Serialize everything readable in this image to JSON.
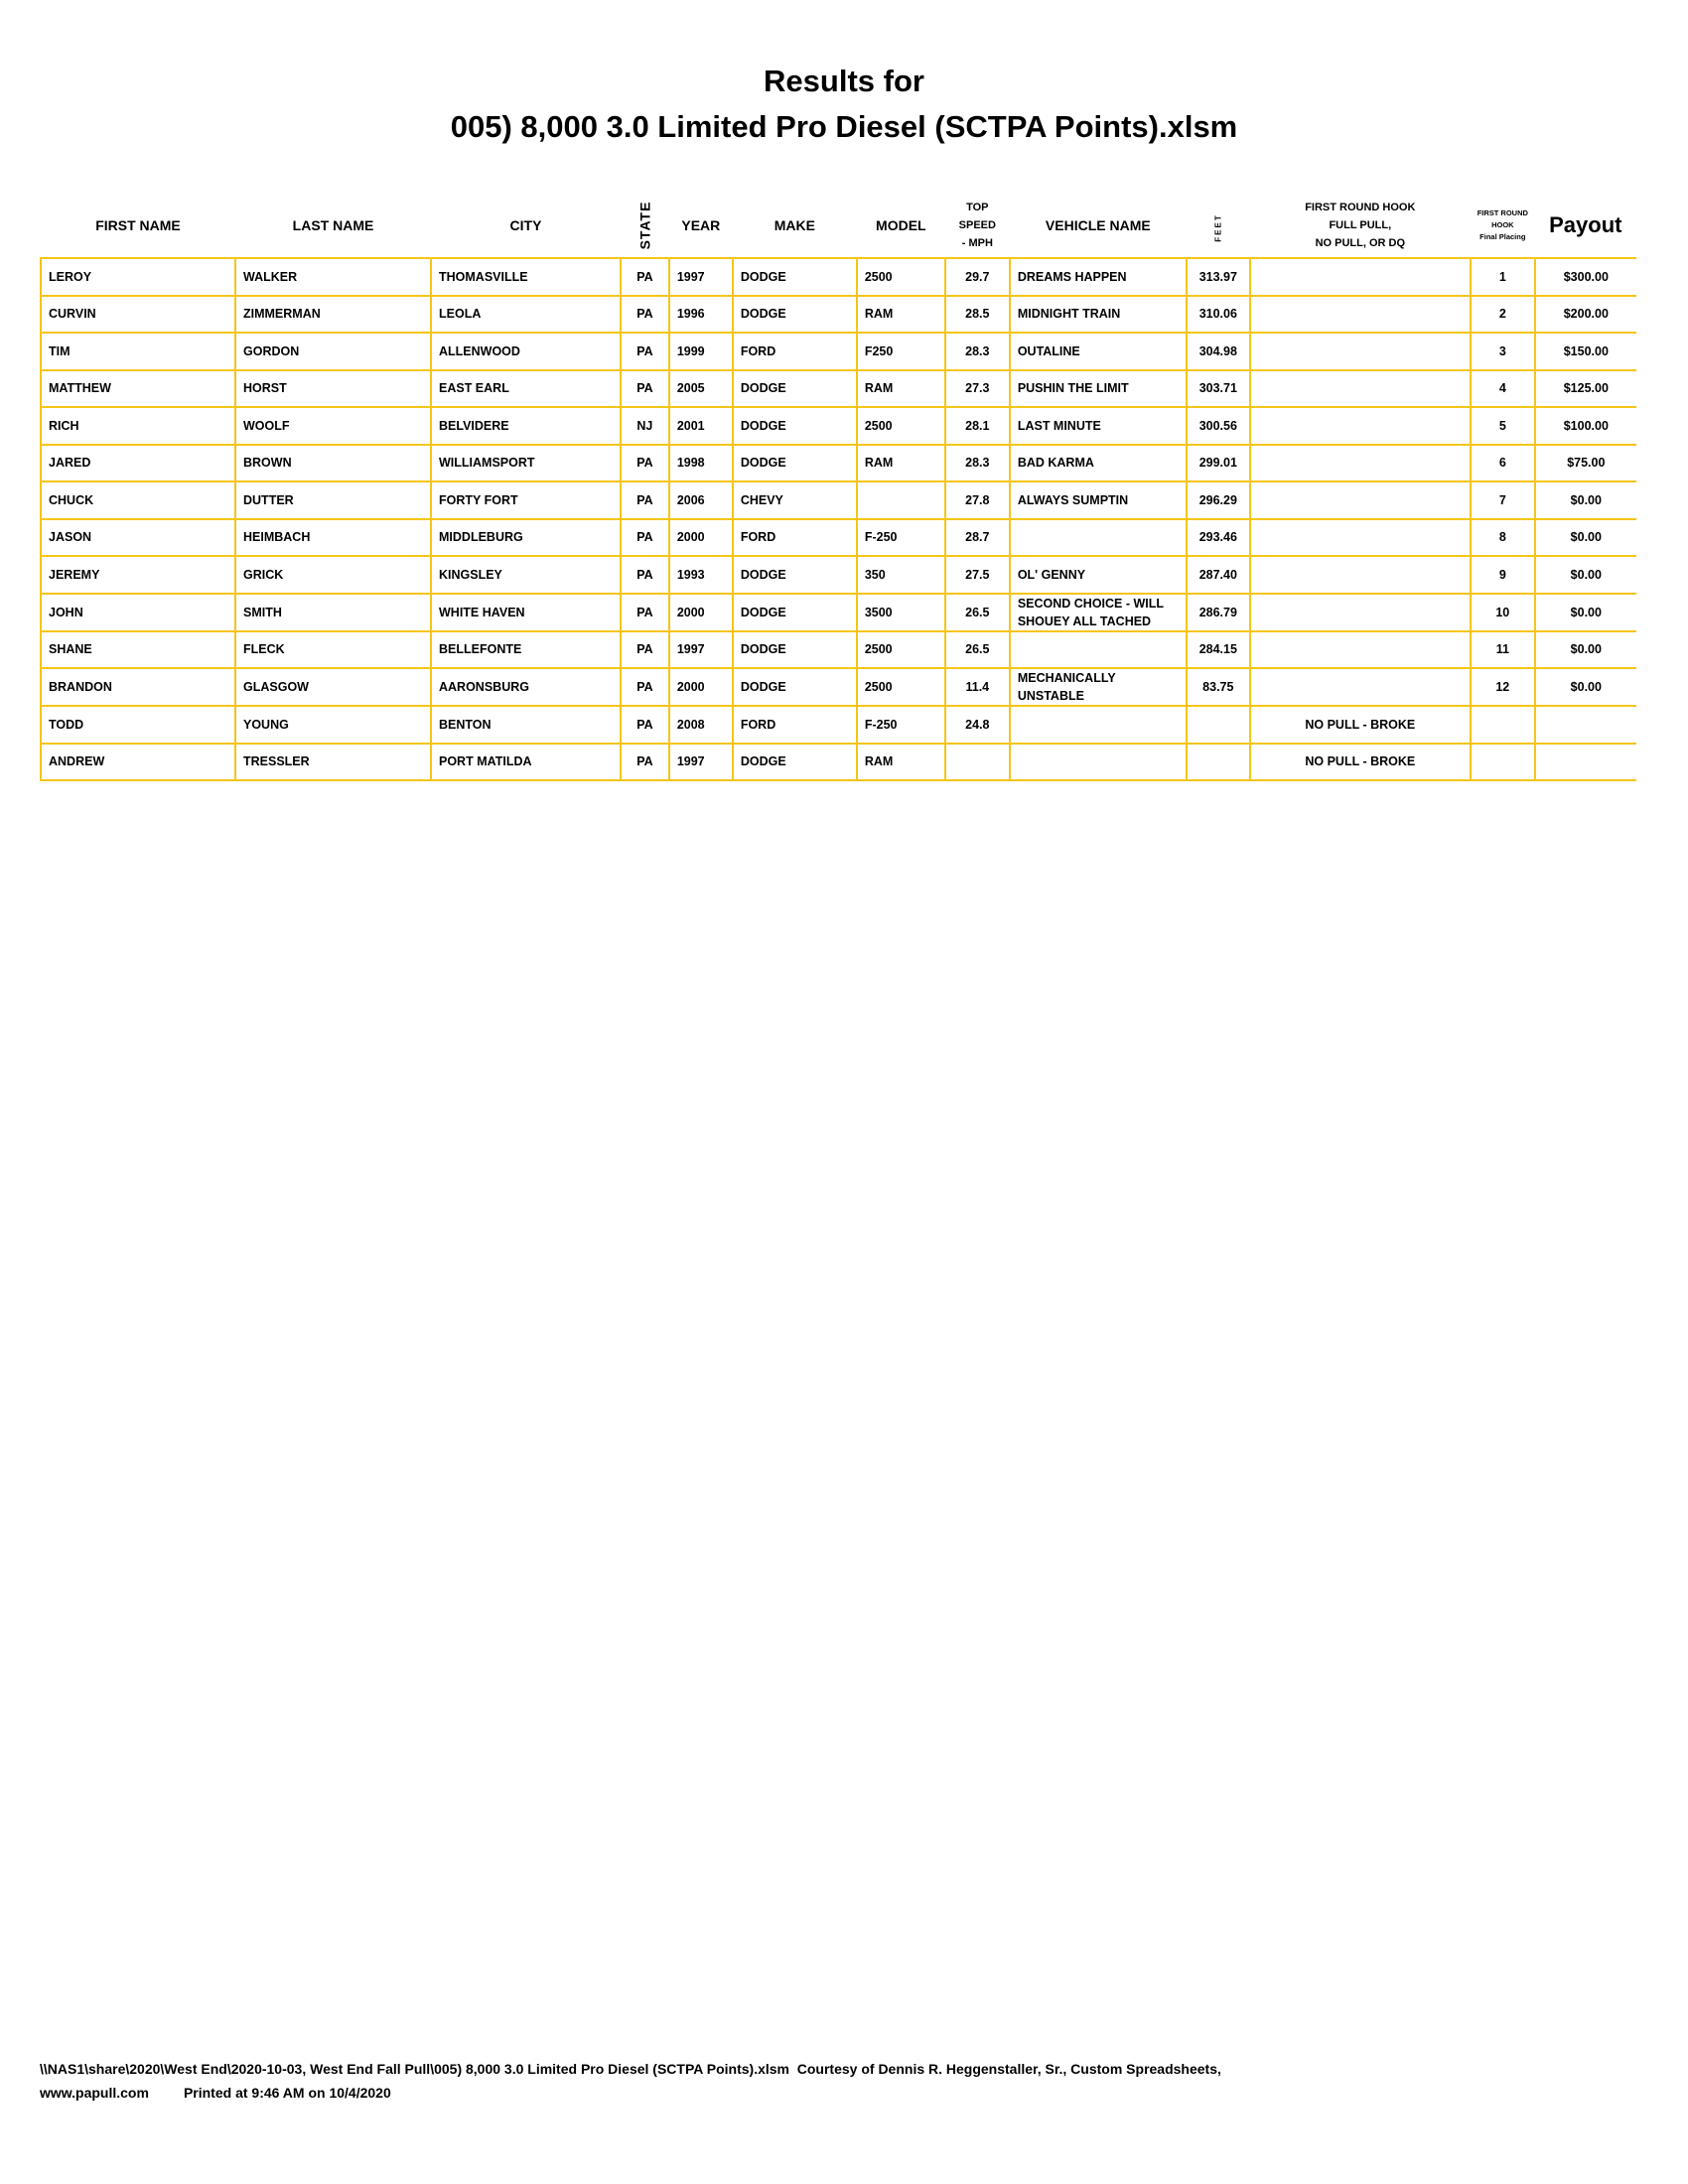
{
  "title": {
    "line1": "Results for",
    "line2": "005) 8,000 3.0 Limited Pro Diesel (SCTPA Points).xlsm"
  },
  "colors": {
    "grid": "#f5c518"
  },
  "headers": {
    "first_name": "FIRST NAME",
    "last_name": "LAST NAME",
    "city": "CITY",
    "state": "STATE",
    "year": "YEAR",
    "make": "MAKE",
    "model": "MODEL",
    "top_speed": [
      "TOP",
      "SPEED",
      "- MPH"
    ],
    "vehicle_name": "VEHICLE NAME",
    "feet": "FEET",
    "hook": [
      "FIRST ROUND HOOK",
      "FULL PULL,",
      "NO PULL, OR DQ"
    ],
    "placing": [
      "FIRST ROUND",
      "HOOK",
      "Final Placing"
    ],
    "payout": "Payout"
  },
  "rows": [
    [
      "LEROY",
      "WALKER",
      "THOMASVILLE",
      "PA",
      "1997",
      "DODGE",
      "2500",
      "29.7",
      "DREAMS HAPPEN",
      "313.97",
      "",
      "1",
      "$300.00"
    ],
    [
      "CURVIN",
      "ZIMMERMAN",
      "LEOLA",
      "PA",
      "1996",
      "DODGE",
      "RAM",
      "28.5",
      "MIDNIGHT TRAIN",
      "310.06",
      "",
      "2",
      "$200.00"
    ],
    [
      "TIM",
      "GORDON",
      "ALLENWOOD",
      "PA",
      "1999",
      "FORD",
      "F250",
      "28.3",
      "OUTALINE",
      "304.98",
      "",
      "3",
      "$150.00"
    ],
    [
      "MATTHEW",
      "HORST",
      "EAST EARL",
      "PA",
      "2005",
      "DODGE",
      "RAM",
      "27.3",
      "PUSHIN THE LIMIT",
      "303.71",
      "",
      "4",
      "$125.00"
    ],
    [
      "RICH",
      "WOOLF",
      "BELVIDERE",
      "NJ",
      "2001",
      "DODGE",
      "2500",
      "28.1",
      "LAST MINUTE",
      "300.56",
      "",
      "5",
      "$100.00"
    ],
    [
      "JARED",
      "BROWN",
      "WILLIAMSPORT",
      "PA",
      "1998",
      "DODGE",
      "RAM",
      "28.3",
      "BAD KARMA",
      "299.01",
      "",
      "6",
      "$75.00"
    ],
    [
      "CHUCK",
      "DUTTER",
      "FORTY FORT",
      "PA",
      "2006",
      "CHEVY",
      "",
      "27.8",
      "ALWAYS SUMPTIN",
      "296.29",
      "",
      "7",
      "$0.00"
    ],
    [
      "JASON",
      "HEIMBACH",
      "MIDDLEBURG",
      "PA",
      "2000",
      "FORD",
      "F-250",
      "28.7",
      "",
      "293.46",
      "",
      "8",
      "$0.00"
    ],
    [
      "JEREMY",
      "GRICK",
      "KINGSLEY",
      "PA",
      "1993",
      "DODGE",
      "350",
      "27.5",
      "OL' GENNY",
      "287.40",
      "",
      "9",
      "$0.00"
    ],
    [
      "JOHN",
      "SMITH",
      "WHITE HAVEN",
      "PA",
      "2000",
      "DODGE",
      "3500",
      "26.5",
      "SECOND CHOICE - WILL SHOUEY ALL TACHED",
      "286.79",
      "",
      "10",
      "$0.00"
    ],
    [
      "SHANE",
      "FLECK",
      "BELLEFONTE",
      "PA",
      "1997",
      "DODGE",
      "2500",
      "26.5",
      "",
      "284.15",
      "",
      "11",
      "$0.00"
    ],
    [
      "BRANDON",
      "GLASGOW",
      "AARONSBURG",
      "PA",
      "2000",
      "DODGE",
      "2500",
      "11.4",
      "MECHANICALLY UNSTABLE",
      "83.75",
      "",
      "12",
      "$0.00"
    ],
    [
      "TODD",
      "YOUNG",
      "BENTON",
      "PA",
      "2008",
      "FORD",
      "F-250",
      "24.8",
      "",
      "",
      "NO PULL - BROKE",
      "",
      ""
    ],
    [
      "ANDREW",
      "TRESSLER",
      "PORT MATILDA",
      "PA",
      "1997",
      "DODGE",
      "RAM",
      "",
      "",
      "",
      "NO PULL - BROKE",
      "",
      ""
    ]
  ],
  "footer": {
    "line1": "\\\\NAS1\\share\\2020\\West End\\2020-10-03, West End Fall Pull\\005) 8,000 3.0 Limited Pro Diesel (SCTPA Points).xlsm  Courtesy of Dennis R. Heggenstaller, Sr., Custom Spreadsheets,",
    "website": "www.papull.com",
    "printed": "Printed at 9:46 AM on 10/4/2020"
  }
}
